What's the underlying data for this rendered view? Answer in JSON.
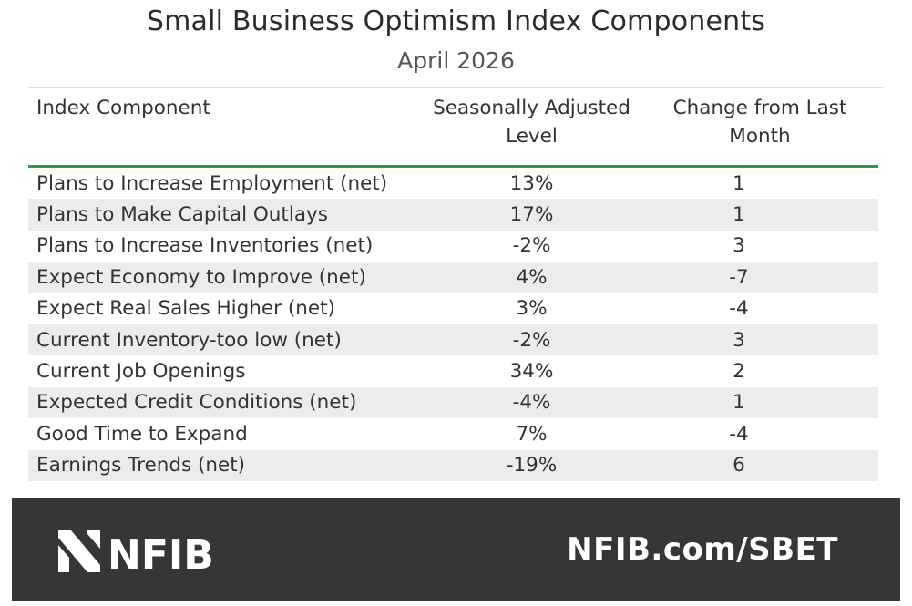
{
  "header": {
    "title": "Small Business Optimism Index Components",
    "subtitle": "April 2026"
  },
  "table": {
    "columns": {
      "component": "Index Component",
      "level_line1": "Seasonally Adjusted",
      "level_line2": "Level",
      "change_line1": "Change from Last",
      "change_line2": "Month"
    },
    "rows": [
      {
        "component": "Plans to Increase Employment (net)",
        "level": "13%",
        "change": "1"
      },
      {
        "component": "Plans to Make Capital Outlays",
        "level": "17%",
        "change": "1"
      },
      {
        "component": "Plans to Increase Inventories (net)",
        "level": "-2%",
        "change": "3"
      },
      {
        "component": "Expect Economy to Improve (net)",
        "level": "4%",
        "change": "-7"
      },
      {
        "component": "Expect Real Sales Higher (net)",
        "level": "3%",
        "change": "-4"
      },
      {
        "component": "Current Inventory-too low (net)",
        "level": "-2%",
        "change": "3"
      },
      {
        "component": "Current Job Openings",
        "level": "34%",
        "change": "2"
      },
      {
        "component": "Expected Credit Conditions (net)",
        "level": "-4%",
        "change": "1"
      },
      {
        "component": "Good Time to Expand",
        "level": "7%",
        "change": "-4"
      },
      {
        "component": "Earnings Trends (net)",
        "level": "-19%",
        "change": "6"
      }
    ]
  },
  "footer": {
    "logo_text": "NFIB",
    "logo_icon": "nfib-logo-icon",
    "url": "NFIB.com/SBET",
    "background": "#363636"
  },
  "colors": {
    "accent_green": "#2e9e3c",
    "stripe": "#ececec"
  }
}
